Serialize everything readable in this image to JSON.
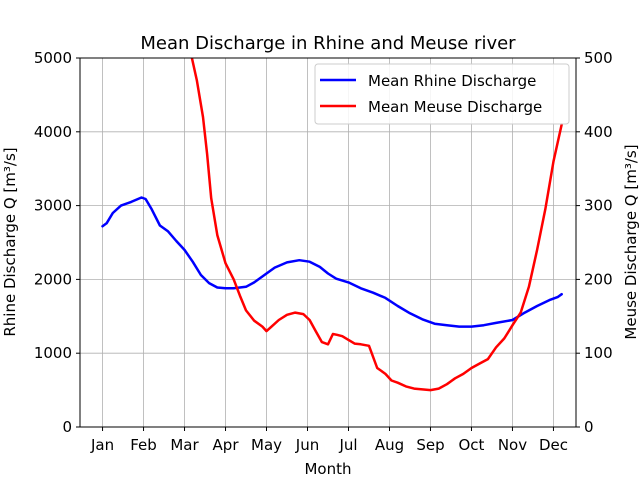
{
  "chart_data": {
    "type": "line",
    "title": "Mean Discharge in Rhine and Meuse river",
    "xlabel": "Month",
    "ylabel_left": "Rhine Discharge Q [m³/s]",
    "ylabel_right": "Meuse Discharge Q [m³/s]",
    "x_range": [
      -0.55,
      11.55
    ],
    "x_ticks": [
      0,
      1,
      2,
      3,
      4,
      5,
      6,
      7,
      8,
      9,
      10,
      11
    ],
    "x_tick_labels": [
      "Jan",
      "Feb",
      "Mar",
      "Apr",
      "May",
      "Jun",
      "Jul",
      "Aug",
      "Sep",
      "Oct",
      "Nov",
      "Dec"
    ],
    "ylim_left": [
      0,
      5000
    ],
    "yticks_left": [
      0,
      1000,
      2000,
      3000,
      4000,
      5000
    ],
    "ytick_labels_left": [
      "0",
      "1000",
      "2000",
      "3000",
      "4000",
      "5000"
    ],
    "ylim_right": [
      0,
      500
    ],
    "yticks_right": [
      0,
      100,
      200,
      300,
      400,
      500
    ],
    "ytick_labels_right": [
      "0",
      "100",
      "200",
      "300",
      "400",
      "500"
    ],
    "grid": true,
    "legend_position": "top-right",
    "series": [
      {
        "name": "Mean Rhine Discharge",
        "axis": "left",
        "color": "#0000ff",
        "x": [
          0,
          0.1,
          0.25,
          0.45,
          0.7,
          0.95,
          1.05,
          1.2,
          1.4,
          1.6,
          1.8,
          2.0,
          2.2,
          2.4,
          2.6,
          2.8,
          3.0,
          3.2,
          3.5,
          3.7,
          4.0,
          4.2,
          4.5,
          4.8,
          5.05,
          5.3,
          5.5,
          5.7,
          6.0,
          6.3,
          6.6,
          6.9,
          7.2,
          7.5,
          7.8,
          8.1,
          8.4,
          8.7,
          9.0,
          9.3,
          9.6,
          10.0,
          10.3,
          10.6,
          10.9,
          11.1,
          11.2
        ],
        "y": [
          2720,
          2760,
          2900,
          3000,
          3050,
          3110,
          3090,
          2950,
          2730,
          2650,
          2520,
          2400,
          2240,
          2060,
          1950,
          1890,
          1880,
          1880,
          1900,
          1960,
          2080,
          2160,
          2230,
          2260,
          2240,
          2170,
          2080,
          2010,
          1960,
          1880,
          1820,
          1750,
          1640,
          1540,
          1460,
          1400,
          1380,
          1360,
          1360,
          1380,
          1410,
          1450,
          1550,
          1640,
          1720,
          1760,
          1800
        ]
      },
      {
        "name": "Mean Meuse Discharge",
        "axis": "right",
        "color": "#ff0000",
        "x": [
          2.18,
          2.3,
          2.45,
          2.55,
          2.65,
          2.8,
          3.0,
          3.2,
          3.35,
          3.5,
          3.7,
          3.9,
          4.0,
          4.1,
          4.3,
          4.5,
          4.7,
          4.9,
          5.05,
          5.2,
          5.35,
          5.5,
          5.62,
          5.72,
          5.85,
          6.0,
          6.15,
          6.3,
          6.5,
          6.7,
          6.8,
          6.9,
          7.05,
          7.2,
          7.4,
          7.6,
          7.8,
          8.0,
          8.2,
          8.4,
          8.6,
          8.8,
          9.0,
          9.2,
          9.4,
          9.6,
          9.8,
          10.0,
          10.2,
          10.4,
          10.6,
          10.8,
          11.0,
          11.1,
          11.2
        ],
        "y": [
          500,
          470,
          420,
          370,
          310,
          260,
          222,
          200,
          178,
          158,
          144,
          136,
          130,
          135,
          145,
          152,
          155,
          153,
          145,
          130,
          115,
          112,
          126,
          125,
          123,
          118,
          113,
          112,
          110,
          80,
          76,
          72,
          63,
          60,
          55,
          52,
          51,
          50,
          52,
          58,
          66,
          72,
          80,
          86,
          92,
          108,
          120,
          138,
          155,
          190,
          240,
          295,
          360,
          385,
          410
        ]
      }
    ]
  }
}
